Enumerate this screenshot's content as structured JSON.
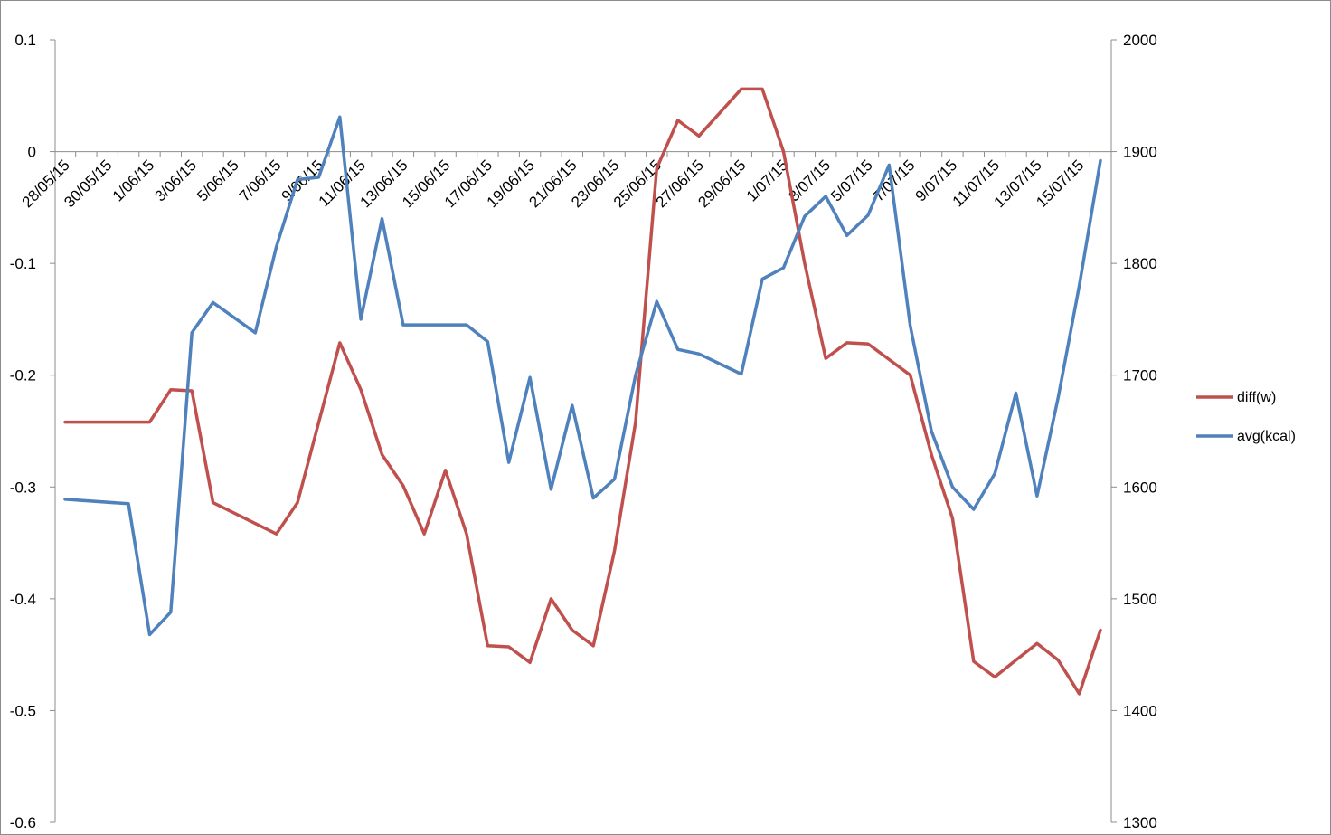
{
  "chart_data": {
    "type": "line",
    "title": "",
    "xlabel": "",
    "ylabel": "",
    "legend_position": "right",
    "grid": false,
    "x_tick_labels": [
      "28/05/15",
      "30/05/15",
      "1/06/15",
      "3/06/15",
      "5/06/15",
      "7/06/15",
      "9/06/15",
      "11/06/15",
      "13/06/15",
      "15/06/15",
      "17/06/15",
      "19/06/15",
      "21/06/15",
      "23/06/15",
      "25/06/15",
      "27/06/15",
      "29/06/15",
      "1/07/15",
      "3/07/15",
      "5/07/15",
      "7/07/15",
      "9/07/15",
      "11/07/15",
      "13/07/15",
      "15/07/15"
    ],
    "y_left": {
      "range": [
        -0.6,
        0.1
      ],
      "ticks": [
        "0.1",
        "0",
        "-0.1",
        "-0.2",
        "-0.3",
        "-0.4",
        "-0.5",
        "-0.6"
      ],
      "tick_values": [
        0.1,
        0,
        -0.1,
        -0.2,
        -0.3,
        -0.4,
        -0.5,
        -0.6
      ]
    },
    "y_right": {
      "range": [
        1300,
        2000
      ],
      "ticks": [
        "2000",
        "1900",
        "1800",
        "1700",
        "1600",
        "1500",
        "1400",
        "1300"
      ],
      "tick_values": [
        2000,
        1900,
        1800,
        1700,
        1600,
        1500,
        1400,
        1300
      ]
    },
    "series": [
      {
        "name": "diff(w)",
        "color": "#c0504d",
        "axis": "left",
        "x": [
          "28/05/15",
          "1/06/15",
          "2/06/15",
          "3/06/15",
          "4/06/15",
          "7/06/15",
          "8/06/15",
          "10/06/15",
          "11/06/15",
          "12/06/15",
          "13/06/15",
          "14/06/15",
          "15/06/15",
          "16/06/15",
          "17/06/15",
          "18/06/15",
          "19/06/15",
          "20/06/15",
          "21/06/15",
          "22/06/15",
          "23/06/15",
          "24/06/15",
          "25/06/15",
          "26/06/15",
          "27/06/15",
          "29/06/15",
          "30/06/15",
          "1/07/15",
          "2/07/15",
          "3/07/15",
          "4/07/15",
          "5/07/15",
          "6/07/15",
          "7/07/15",
          "8/07/15",
          "9/07/15",
          "10/07/15",
          "11/07/15",
          "12/07/15",
          "13/07/15",
          "14/07/15",
          "15/07/15",
          "16/07/15"
        ],
        "values": [
          -0.242,
          -0.242,
          -0.213,
          -0.214,
          -0.314,
          -0.342,
          -0.314,
          -0.171,
          -0.213,
          -0.271,
          -0.299,
          -0.342,
          -0.285,
          -0.342,
          -0.442,
          -0.443,
          -0.457,
          -0.4,
          -0.428,
          -0.442,
          -0.357,
          -0.242,
          -0.015,
          0.028,
          0.014,
          0.056,
          0.056,
          0.0,
          -0.1,
          -0.185,
          -0.171,
          -0.172,
          -0.186,
          -0.2,
          -0.271,
          -0.328,
          -0.456,
          -0.47,
          -0.455,
          -0.44,
          -0.455,
          -0.485,
          -0.428
        ]
      },
      {
        "name": "avg(kcal)",
        "color": "#4f81bd",
        "axis": "right",
        "x": [
          "28/05/15",
          "31/05/15",
          "1/06/15",
          "2/06/15",
          "3/06/15",
          "4/06/15",
          "6/06/15",
          "7/06/15",
          "8/06/15",
          "9/06/15",
          "10/06/15",
          "11/06/15",
          "12/06/15",
          "13/06/15",
          "14/06/15",
          "16/06/15",
          "17/06/15",
          "18/06/15",
          "19/06/15",
          "20/06/15",
          "21/06/15",
          "22/06/15",
          "23/06/15",
          "24/06/15",
          "25/06/15",
          "26/06/15",
          "27/06/15",
          "29/06/15",
          "30/06/15",
          "1/07/15",
          "2/07/15",
          "3/07/15",
          "4/07/15",
          "5/07/15",
          "6/07/15",
          "7/07/15",
          "8/07/15",
          "9/07/15",
          "10/07/15",
          "11/07/15",
          "12/07/15",
          "13/07/15",
          "14/07/15",
          "15/07/15",
          "16/07/15"
        ],
        "values": [
          1589,
          1585,
          1468,
          1488,
          1738,
          1765,
          1738,
          1815,
          1875,
          1877,
          1931,
          1750,
          1840,
          1745,
          1745,
          1745,
          1730,
          1622,
          1698,
          1598,
          1673,
          1590,
          1607,
          1700,
          1766,
          1723,
          1719,
          1701,
          1786,
          1796,
          1842,
          1860,
          1825,
          1843,
          1888,
          1744,
          1650,
          1600,
          1580,
          1612,
          1684,
          1592,
          1680,
          1780,
          1892
        ]
      }
    ]
  }
}
